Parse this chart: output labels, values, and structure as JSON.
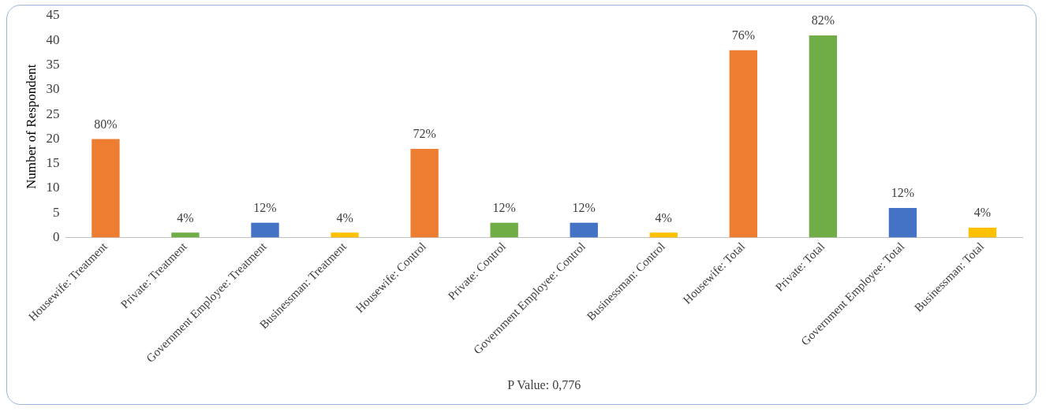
{
  "chart_data": {
    "type": "bar",
    "xlabel": "P Value: 0,776",
    "ylabel": "Number of Respondent",
    "categories": [
      "Housewife: Treatment",
      "Private: Treatment",
      "Government Employee: Treatment",
      "Businessman: Treatment",
      "Housewife: Control",
      "Private: Control",
      "Government Employee: Control",
      "Businessman: Control",
      "Housewife: Total",
      "Private: Total",
      "Government Employee: Total",
      "Businessman: Total"
    ],
    "values": [
      20,
      1,
      3,
      1,
      18,
      3,
      3,
      1,
      38,
      41,
      6,
      2
    ],
    "colors": [
      "#ed7d31",
      "#70ad47",
      "#4472c4",
      "#ffc000",
      "#ed7d31",
      "#70ad47",
      "#4472c4",
      "#ffc000",
      "#ed7d31",
      "#70ad47",
      "#4472c4",
      "#ffc000"
    ],
    "annotations": [
      {
        "text": "80%",
        "x": "Housewife: Treatment",
        "y": 20
      },
      {
        "text": "4%",
        "x": "Private: Treatment",
        "y": 1
      },
      {
        "text": "12%",
        "x": "Government Employee: Treatment",
        "y": 3
      },
      {
        "text": "4%",
        "x": "Businessman: Treatment",
        "y": 1
      },
      {
        "text": "72%",
        "x": "Housewife: Control",
        "y": 18
      },
      {
        "text": "12%",
        "x": "Private: Control",
        "y": 3
      },
      {
        "text": "12%",
        "x": "Government Employee: Control",
        "y": 3
      },
      {
        "text": "4%",
        "x": "Businessman: Control",
        "y": 1
      },
      {
        "text": "76%",
        "x": "Housewife: Total",
        "y": 38
      },
      {
        "text": "82%",
        "x": "Private: Total",
        "y": 41
      },
      {
        "text": "12%",
        "x": "Government Employee: Total",
        "y": 6
      },
      {
        "text": "4%",
        "x": "Businessman: Total",
        "y": 2
      }
    ],
    "ylim": [
      0,
      45
    ],
    "yticks": [
      0,
      5,
      10,
      15,
      20,
      25,
      30,
      35,
      40,
      45
    ],
    "grid": false,
    "legend": false
  }
}
